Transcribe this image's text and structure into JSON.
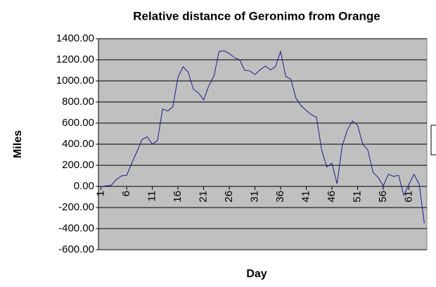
{
  "chart_data": {
    "type": "line",
    "title": "Relative distance of Geronimo from Orange",
    "x_label": "Day",
    "y_label": "Miles",
    "x": [
      1,
      2,
      3,
      4,
      5,
      6,
      7,
      8,
      9,
      10,
      11,
      12,
      13,
      14,
      15,
      16,
      17,
      18,
      19,
      20,
      21,
      22,
      23,
      24,
      25,
      26,
      27,
      28,
      29,
      30,
      31,
      32,
      33,
      34,
      35,
      36,
      37,
      38,
      39,
      40,
      41,
      42,
      43,
      44,
      45,
      46,
      47,
      48,
      49,
      50,
      51,
      52,
      53,
      54,
      55,
      56,
      57,
      58,
      59,
      60,
      61,
      62,
      63,
      64
    ],
    "series": [
      {
        "color": "#1c1c8c",
        "values": [
          0,
          5,
          10,
          65,
          100,
          105,
          220,
          330,
          445,
          470,
          400,
          435,
          735,
          715,
          755,
          1035,
          1135,
          1080,
          920,
          885,
          820,
          955,
          1045,
          1280,
          1285,
          1260,
          1220,
          1200,
          1100,
          1095,
          1060,
          1105,
          1140,
          1105,
          1135,
          1280,
          1045,
          1015,
          835,
          765,
          720,
          680,
          655,
          345,
          185,
          220,
          25,
          385,
          535,
          620,
          580,
          400,
          345,
          135,
          85,
          5,
          115,
          95,
          105,
          -85,
          20,
          115,
          20,
          -350
        ]
      }
    ],
    "xlim": [
      0.5,
      64.5
    ],
    "xticks": [
      1,
      6,
      11,
      16,
      21,
      26,
      31,
      36,
      41,
      46,
      51,
      56,
      61
    ],
    "ylim": [
      -600,
      1400
    ],
    "yticks": [
      {
        "value": -600,
        "label": "-600.00"
      },
      {
        "value": -400,
        "label": "-400.00"
      },
      {
        "value": -200,
        "label": "-200.00"
      },
      {
        "value": 0,
        "label": "0.00"
      },
      {
        "value": 200,
        "label": "200.00"
      },
      {
        "value": 400,
        "label": "400.00"
      },
      {
        "value": 600,
        "label": "600.00"
      },
      {
        "value": 800,
        "label": "800.00"
      },
      {
        "value": 1000,
        "label": "1000.00"
      },
      {
        "value": 1200,
        "label": "1200.00"
      },
      {
        "value": 1400,
        "label": "1400.00"
      }
    ],
    "grid": true,
    "plot_background": "#c0c0c0"
  }
}
